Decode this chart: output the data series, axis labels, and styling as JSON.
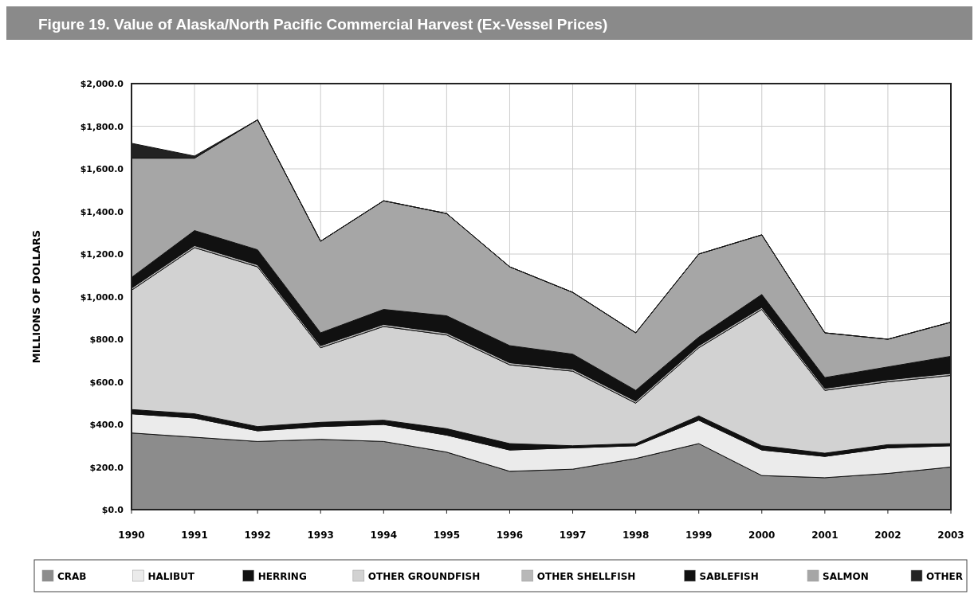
{
  "chart_data": {
    "type": "area",
    "stacked": true,
    "title": "Figure 19. Value of Alaska/North Pacific Commercial Harvest (Ex-Vessel Prices)",
    "ylabel": "MILLIONS OF DOLLARS",
    "categories": [
      "1990",
      "1991",
      "1992",
      "1993",
      "1994",
      "1995",
      "1996",
      "1997",
      "1998",
      "1999",
      "2000",
      "2001",
      "2002",
      "2003"
    ],
    "ylim": [
      0,
      2000
    ],
    "yticks": [
      {
        "value": 0,
        "label": "$0.0"
      },
      {
        "value": 200,
        "label": "$200.0"
      },
      {
        "value": 400,
        "label": "$400.0"
      },
      {
        "value": 600,
        "label": "$600.0"
      },
      {
        "value": 800,
        "label": "$800.0"
      },
      {
        "value": 1000,
        "label": "$1,000.0"
      },
      {
        "value": 1200,
        "label": "$1,200.0"
      },
      {
        "value": 1400,
        "label": "$1,400.0"
      },
      {
        "value": 1600,
        "label": "$1,600.0"
      },
      {
        "value": 1800,
        "label": "$1,800.0"
      },
      {
        "value": 2000,
        "label": "$2,000.0"
      }
    ],
    "grid": true,
    "legend": "bottom",
    "series": [
      {
        "name": "CRAB",
        "color": "#8c8c8c",
        "values": [
          360,
          340,
          320,
          330,
          320,
          270,
          180,
          190,
          240,
          310,
          160,
          150,
          170,
          200
        ]
      },
      {
        "name": "HALIBUT",
        "color": "#ebebeb",
        "values": [
          90,
          90,
          50,
          60,
          80,
          80,
          100,
          100,
          60,
          110,
          120,
          100,
          120,
          100
        ]
      },
      {
        "name": "HERRING",
        "color": "#111111",
        "values": [
          20,
          20,
          20,
          20,
          20,
          30,
          30,
          10,
          10,
          20,
          20,
          15,
          15,
          10
        ]
      },
      {
        "name": "OTHER GROUNDFISH",
        "color": "#d2d2d2",
        "values": [
          560,
          780,
          750,
          350,
          440,
          440,
          370,
          350,
          190,
          320,
          640,
          295,
          295,
          320
        ]
      },
      {
        "name": "OTHER SHELLFISH",
        "color": "#b8b8b8",
        "values": [
          10,
          10,
          10,
          10,
          10,
          10,
          10,
          10,
          10,
          10,
          10,
          10,
          10,
          10
        ]
      },
      {
        "name": "SABLEFISH",
        "color": "#111111",
        "values": [
          50,
          70,
          70,
          60,
          70,
          80,
          80,
          70,
          50,
          40,
          60,
          50,
          60,
          80
        ]
      },
      {
        "name": "SALMON",
        "color": "#a6a6a6",
        "values": [
          560,
          340,
          610,
          430,
          510,
          480,
          370,
          290,
          270,
          390,
          280,
          210,
          130,
          160
        ]
      },
      {
        "name": "OTHER",
        "color": "#222222",
        "values": [
          70,
          10,
          0,
          0,
          0,
          0,
          0,
          0,
          0,
          0,
          0,
          0,
          0,
          0
        ]
      }
    ]
  }
}
